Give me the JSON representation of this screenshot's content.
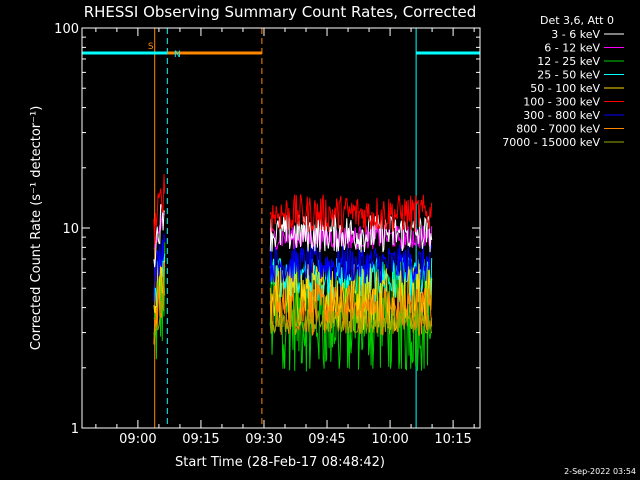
{
  "chart_data": {
    "type": "line",
    "title": "RHESSI Observing Summary Count Rates, Corrected",
    "xlabel": "Start Time (28-Feb-17 08:48:42)",
    "ylabel": "Corrected Count Rate (s⁻¹ detector⁻¹)",
    "y_scale": "log",
    "ylim": [
      1,
      100
    ],
    "xlim_minutes": [
      -13.3,
      81.4
    ],
    "x_tick_labels": [
      "09:00",
      "09:15",
      "09:30",
      "09:45",
      "10:00",
      "10:15"
    ],
    "x_tick_minutes": [
      0,
      15,
      30,
      45,
      60,
      75
    ],
    "y_tick_labels": [
      "1",
      "10",
      "100"
    ],
    "y_tick_values": [
      1,
      10,
      100
    ],
    "legend_title": "Det 3,6, Att 0",
    "legend_position": "top-right",
    "series": [
      {
        "name": "3 - 6 keV",
        "color": "#ffffff",
        "level": 9.4,
        "spread": 1.25
      },
      {
        "name": "6 - 12 keV",
        "color": "#ff00ff",
        "level": 9.0,
        "spread": 1.15
      },
      {
        "name": "12 - 25 keV",
        "color": "#00cc00",
        "level": 3.6,
        "spread": 1.9
      },
      {
        "name": "25 - 50 keV",
        "color": "#00ffff",
        "level": 5.5,
        "spread": 1.3
      },
      {
        "name": "50 - 100 keV",
        "color": "#ffd700",
        "level": 4.6,
        "spread": 1.5
      },
      {
        "name": "100 - 300 keV",
        "color": "#ff0000",
        "level": 11.8,
        "spread": 1.25
      },
      {
        "name": "300 - 800 keV",
        "color": "#0000ff",
        "level": 6.6,
        "spread": 1.25
      },
      {
        "name": "800 - 7000 keV",
        "color": "#ff8800",
        "level": 3.9,
        "spread": 1.35
      },
      {
        "name": "7000 - 15000 keV",
        "color": "#99aa00",
        "level": 3.4,
        "spread": 1.15
      }
    ],
    "data_intervals_minutes": [
      [
        3.8,
        6.5
      ],
      [
        31.5,
        70.0
      ]
    ],
    "flags": [
      {
        "label": "S",
        "color": "#ff8800",
        "start_minute": 4.0,
        "end_minute": 29.5,
        "level": 75
      },
      {
        "label": "N",
        "color": "#00ffff",
        "start_minute": -13.3,
        "end_minute": 7.0,
        "level": 75
      },
      {
        "label": "",
        "color": "#00ffff",
        "start_minute": 66.2,
        "end_minute": 82.3,
        "level": 75
      }
    ],
    "markers": [
      {
        "minute": 4.0,
        "color": "#ff8800",
        "style": "solid"
      },
      {
        "minute": 29.5,
        "color": "#ff8800",
        "style": "dashed"
      },
      {
        "minute": 7.0,
        "color": "#00ffff",
        "style": "dashed"
      },
      {
        "minute": 66.2,
        "color": "#00ffff",
        "style": "solid"
      },
      {
        "minute": 82.3,
        "color": "#00ffff",
        "style": "dashed"
      },
      {
        "minute": -13.3,
        "color": "#00ffff",
        "style": "solid"
      }
    ],
    "footer_date": "2-Sep-2022 03:54"
  }
}
